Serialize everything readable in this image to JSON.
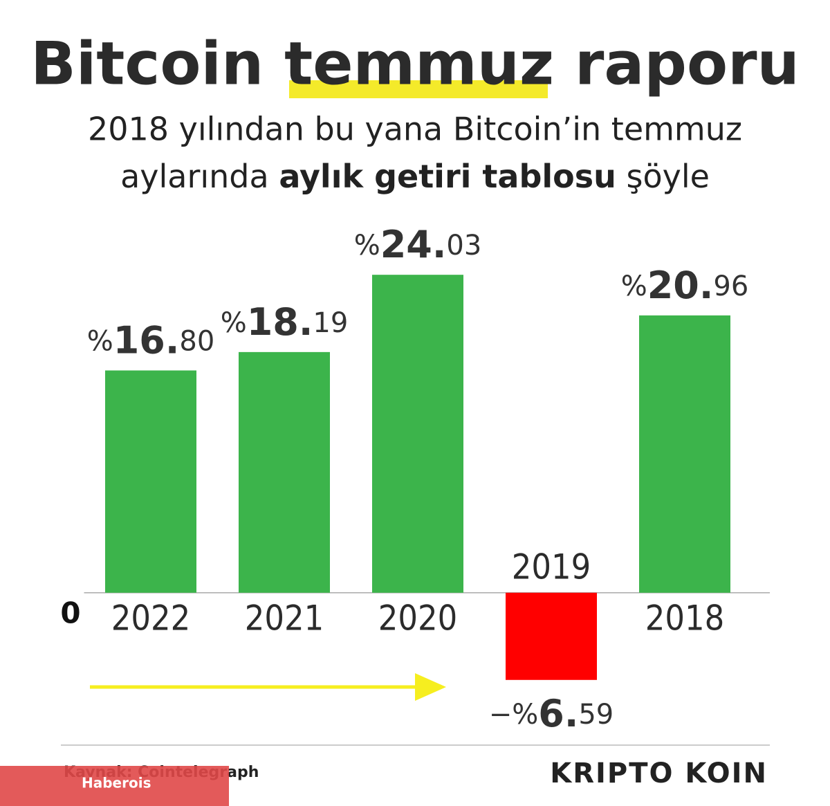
{
  "chart_data": {
    "type": "bar",
    "title": "Bitcoin temmuz raporu",
    "subtitle": [
      "2018 yılından bu yana Bitcoin’in temmuz",
      "aylarında",
      "aylık getiri tablosu",
      "şöyle"
    ],
    "categories": [
      "2022",
      "2021",
      "2020",
      "2019",
      "2018"
    ],
    "values": [
      16.8,
      18.19,
      24.03,
      -6.59,
      20.96
    ],
    "value_labels": [
      "%16.80",
      "%18.19",
      "%24.03",
      "−%6.59",
      "%20.96"
    ],
    "colors": [
      "#3cb44b",
      "#3cb44b",
      "#3cb44b",
      "#ff0000",
      "#3cb44b"
    ],
    "ylim": [
      -10,
      30
    ],
    "yticks": [
      0
    ],
    "grid": false,
    "source": "Kaynak: Cointelegraph",
    "brand": "KRIPTO KOIN",
    "watermark": "Haberois"
  }
}
